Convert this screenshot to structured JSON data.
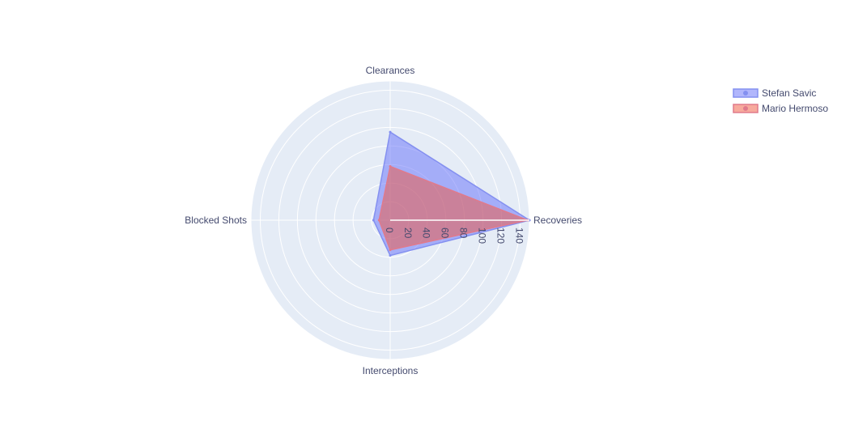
{
  "chart_data": {
    "type": "radar",
    "axes": [
      "Recoveries",
      "Clearances",
      "Blocked Shots",
      "Interceptions"
    ],
    "series": [
      {
        "name": "Stefan Savic",
        "values": [
          150,
          95,
          18,
          38
        ],
        "color": "#8490f0",
        "fill": "rgba(99,110,250,0.5)"
      },
      {
        "name": "Mario Hermoso",
        "values": [
          148,
          58,
          12,
          32
        ],
        "color": "#e07a8c",
        "fill": "rgba(239,85,59,0.5)"
      }
    ],
    "radial_ticks": [
      "0",
      "20",
      "40",
      "60",
      "80",
      "100",
      "120",
      "140"
    ],
    "radial_range": [
      0,
      150
    ],
    "polar_bg": "#e5ecf6",
    "grid_color": "#ffffff",
    "text_color": "#444a6e",
    "legend_position": "top-right"
  }
}
